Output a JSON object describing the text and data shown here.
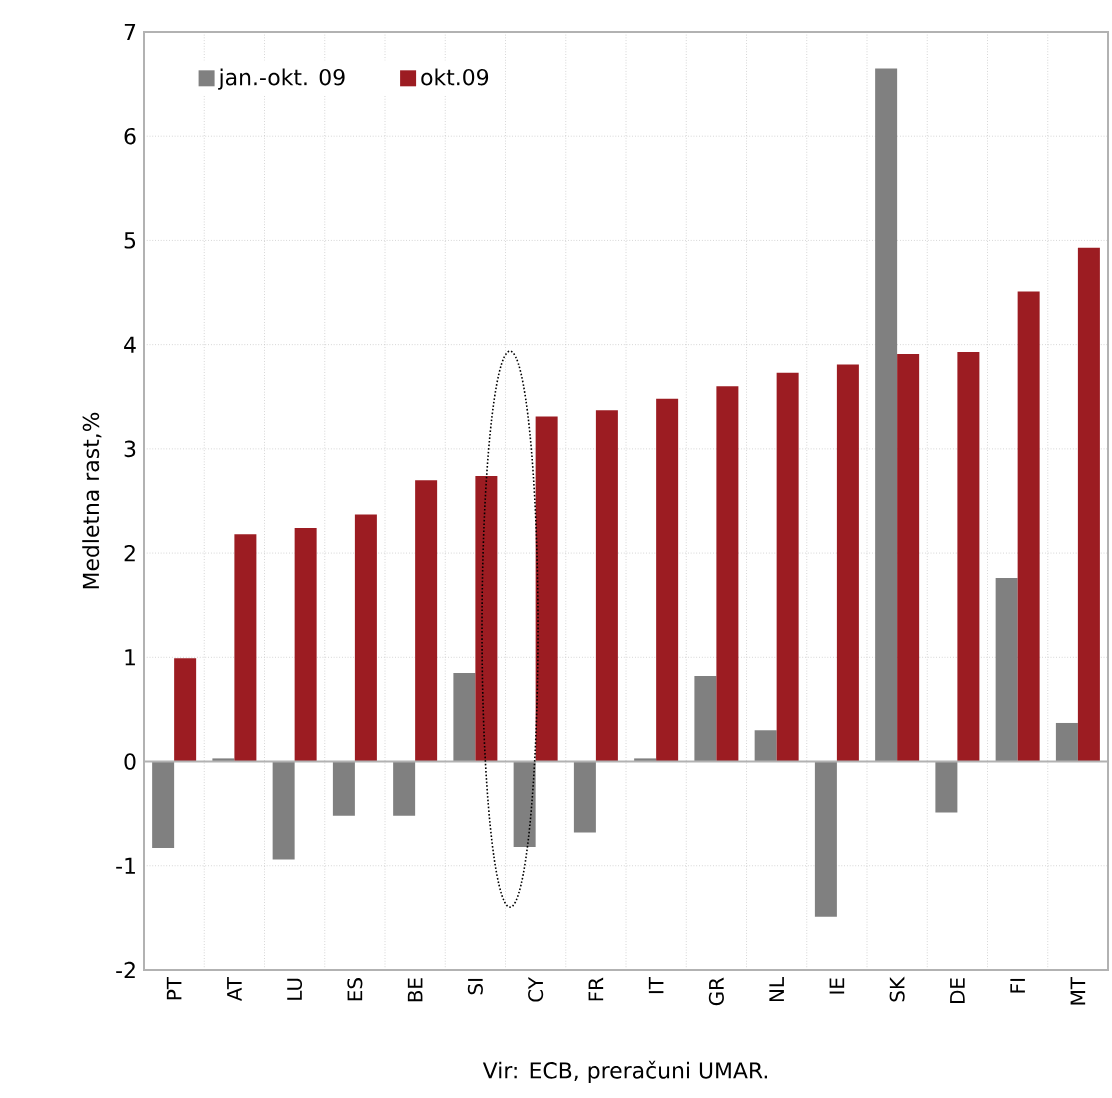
{
  "chart_data": {
    "type": "bar",
    "ylabel": "Medletna rast,%",
    "categories": [
      "PT",
      "AT",
      "LU",
      "ES",
      "BE",
      "SI",
      "CY",
      "FR",
      "IT",
      "GR",
      "NL",
      "IE",
      "SK",
      "DE",
      "FI",
      "MT"
    ],
    "series": [
      {
        "name": "jan.-okt. 09",
        "color": "#808080",
        "values": [
          -0.83,
          0.03,
          -0.94,
          -0.52,
          -0.52,
          0.85,
          -0.82,
          -0.68,
          0.03,
          0.82,
          0.3,
          -1.49,
          6.65,
          -0.49,
          1.76,
          0.37
        ]
      },
      {
        "name": "okt.09",
        "color": "#9c1c22",
        "values": [
          0.99,
          2.18,
          2.24,
          2.37,
          2.7,
          2.74,
          3.31,
          3.37,
          3.48,
          3.6,
          3.73,
          3.81,
          3.91,
          3.93,
          4.51,
          4.93
        ]
      }
    ],
    "ylim": [
      -2,
      7
    ],
    "yticks": [
      -2,
      -1,
      0,
      1,
      2,
      3,
      4,
      5,
      6,
      7
    ],
    "grid": true,
    "legend": "top left",
    "annotations": [
      "Vir: ECB, preračuni UMAR."
    ]
  }
}
